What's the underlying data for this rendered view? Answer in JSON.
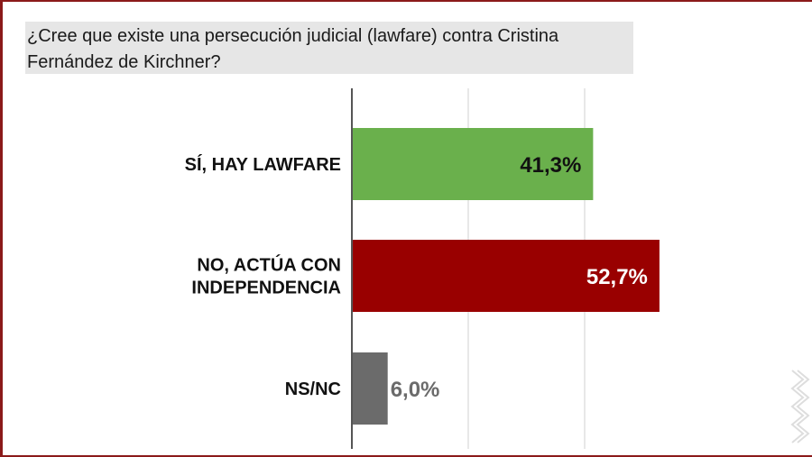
{
  "title": "¿Cree que existe una persecución judicial (lawfare) contra Cristina Fernández de Kirchner?",
  "chart_data": {
    "type": "bar",
    "orientation": "horizontal",
    "title": "¿Cree que existe una persecución judicial (lawfare) contra Cristina Fernández de Kirchner?",
    "categories": [
      [
        "SÍ, HAY LAWFARE"
      ],
      [
        "NO, ACTÚA CON",
        "INDEPENDENCIA"
      ],
      [
        "NS/NC"
      ]
    ],
    "values": [
      41.3,
      52.7,
      6.0
    ],
    "value_labels": [
      "41,3%",
      "52,7%",
      "6,0%"
    ],
    "bar_colors": [
      "#6ab04c",
      "#990000",
      "#6b6b6b"
    ],
    "label_colors": [
      "#111111",
      "#ffffff",
      "#6b6b6b"
    ],
    "xlim": [
      0,
      60
    ],
    "grid": true,
    "xlabel": "",
    "ylabel": ""
  }
}
